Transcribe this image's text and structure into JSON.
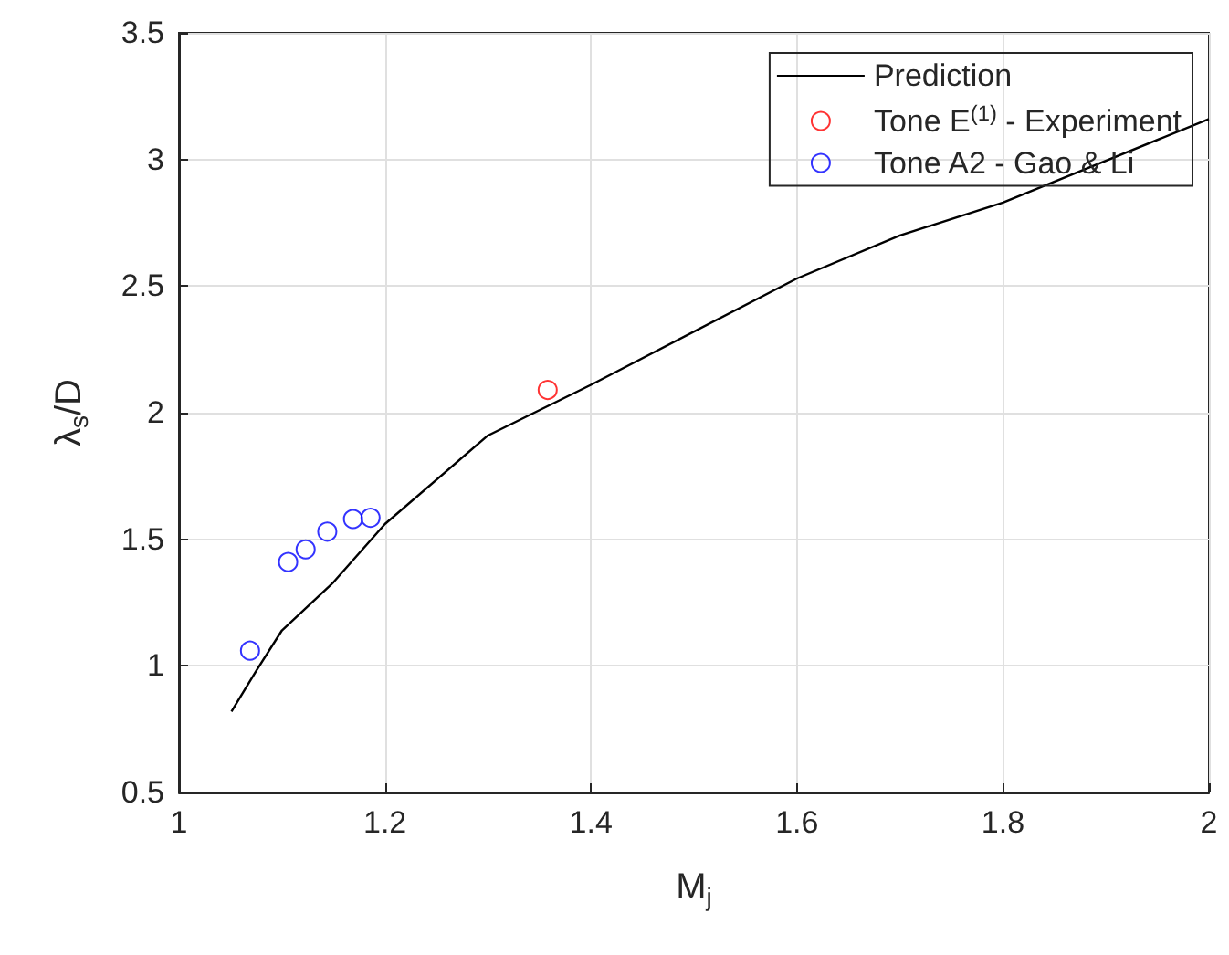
{
  "chart_data": {
    "type": "scatter",
    "xlabel": "M$_{j}$",
    "ylabel": "λ$_{s}$/D",
    "xlim": [
      1,
      2
    ],
    "xticks": [
      1,
      1.2,
      1.4,
      1.6,
      1.8,
      2
    ],
    "ylim": [
      0.5,
      3.5
    ],
    "yticks": [
      0.5,
      1,
      1.5,
      2,
      2.5,
      3,
      3.5
    ],
    "grid": true,
    "legend": "top right",
    "marker": "circle",
    "series": [
      {
        "name": "Prediction",
        "type": "line",
        "color": "#000000",
        "marker": "none",
        "x": [
          1.051,
          1.075,
          1.1,
          1.15,
          1.2,
          1.3,
          1.4,
          1.6,
          1.7,
          1.8,
          2
        ],
        "values": [
          0.82,
          0.98,
          1.14,
          1.33,
          1.56,
          1.91,
          2.11,
          2.53,
          2.7,
          2.83,
          3.16
        ]
      },
      {
        "name": "Tone E$^{(1)}$ - Experiment",
        "color": "#ff0000",
        "x": [
          1.358
        ],
        "values": [
          2.09
        ]
      },
      {
        "name": "Tone A2 - Gao & Li",
        "color": "#0000ff",
        "x": [
          1.069,
          1.106,
          1.123,
          1.144,
          1.169,
          1.186
        ],
        "values": [
          1.06,
          1.41,
          1.46,
          1.53,
          1.58,
          1.585
        ]
      }
    ]
  }
}
